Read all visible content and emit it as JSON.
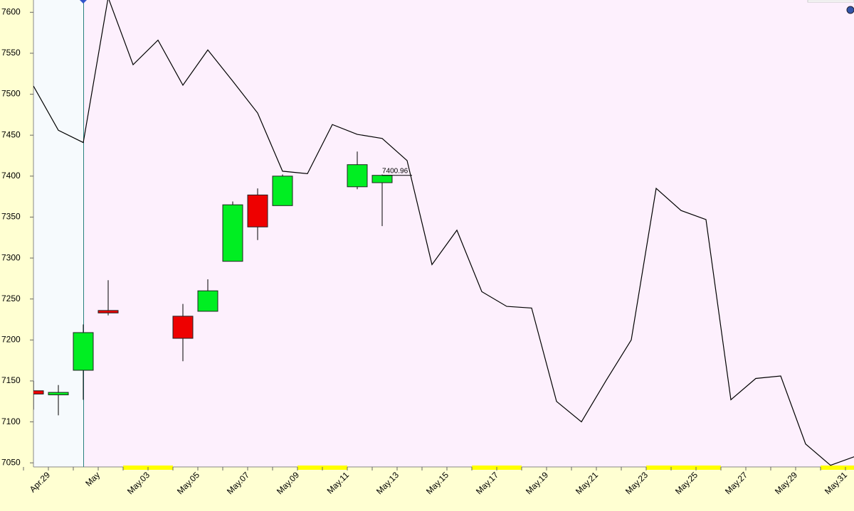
{
  "chart_data": {
    "type": "candlestick",
    "categories": [
      null,
      "Apr.29",
      null,
      "May",
      null,
      "May.03",
      null,
      "May.05",
      null,
      "May.07",
      null,
      "May.09",
      null,
      "May.11",
      null,
      "May.13",
      null,
      "May.15",
      null,
      "May.17",
      null,
      "May.19",
      null,
      "May.21",
      null,
      "May.23",
      null,
      "May.25",
      null,
      "May.27",
      null,
      "May.29",
      null,
      "May.31"
    ],
    "open": [
      7138,
      7133,
      7163,
      7236,
      null,
      null,
      7229,
      7235,
      7296,
      7377,
      7364,
      null,
      null,
      7387,
      7392,
      null,
      null,
      null,
      null,
      null,
      null,
      null,
      null,
      null,
      null,
      null,
      null,
      null,
      null,
      null,
      null,
      null,
      null,
      null
    ],
    "high": [
      7150,
      7145,
      7219,
      7273,
      null,
      null,
      7244,
      7274,
      7369,
      7385,
      7402,
      null,
      null,
      7430,
      7402,
      null,
      null,
      null,
      null,
      null,
      null,
      null,
      null,
      null,
      null,
      null,
      null,
      null,
      null,
      null,
      null,
      null,
      null,
      null
    ],
    "low": [
      7115,
      7108,
      7127,
      7230,
      null,
      null,
      7174,
      7235,
      7296,
      7322,
      7364,
      null,
      null,
      7384,
      7339,
      null,
      null,
      null,
      null,
      null,
      null,
      null,
      null,
      null,
      null,
      null,
      null,
      null,
      null,
      null,
      null,
      null,
      null,
      null
    ],
    "close": [
      7134,
      7136,
      7209,
      7233,
      null,
      null,
      7202,
      7260,
      7365,
      7338,
      7400,
      null,
      null,
      7414,
      7400.96,
      null,
      null,
      null,
      null,
      null,
      null,
      null,
      null,
      null,
      null,
      null,
      null,
      null,
      null,
      null,
      null,
      null,
      null,
      null
    ],
    "up_color": "#00ee22",
    "down_color": "#ee0000",
    "line": {
      "color": "#000000",
      "values": [
        7510,
        7456,
        7441,
        7618,
        7536,
        7566,
        7511,
        7554,
        7516,
        7477,
        7406,
        7403,
        7463,
        7451,
        7446,
        7419,
        7292,
        7334,
        7259,
        7241,
        7239,
        7125,
        7100,
        7151,
        7200,
        7385,
        7358,
        7347,
        7127,
        7153,
        7156,
        7073,
        7047,
        7058
      ]
    },
    "annotation_index": 14,
    "ylim": [
      7045,
      7615
    ],
    "yticks": [
      7050,
      7100,
      7150,
      7200,
      7250,
      7300,
      7350,
      7400,
      7450,
      7500,
      7550,
      7600
    ]
  }
}
